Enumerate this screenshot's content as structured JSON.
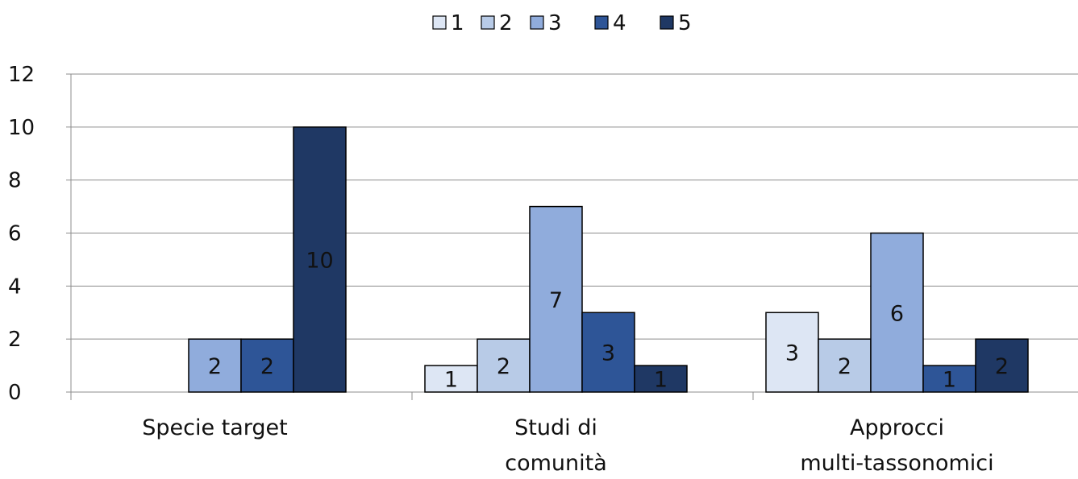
{
  "chart_data": {
    "type": "bar",
    "title": "",
    "xlabel": "",
    "ylabel": "",
    "ylim": [
      0,
      12
    ],
    "yticks": [
      0,
      2,
      4,
      6,
      8,
      10,
      12
    ],
    "grid": true,
    "legend_position": "top",
    "categories": [
      [
        "Specie target"
      ],
      [
        "Studi di",
        "comunità"
      ],
      [
        "Approcci",
        "multi-tassonomici"
      ]
    ],
    "series": [
      {
        "name": "1",
        "color": "#dde6f4",
        "values": [
          0,
          1,
          3
        ]
      },
      {
        "name": "2",
        "color": "#b8cbe7",
        "values": [
          0,
          2,
          2
        ]
      },
      {
        "name": "3",
        "color": "#90acdc",
        "values": [
          2,
          7,
          6
        ]
      },
      {
        "name": "4",
        "color": "#2e5597",
        "values": [
          2,
          3,
          1
        ]
      },
      {
        "name": "5",
        "color": "#1f3864",
        "values": [
          10,
          1,
          2
        ]
      }
    ],
    "data_labels": true
  }
}
